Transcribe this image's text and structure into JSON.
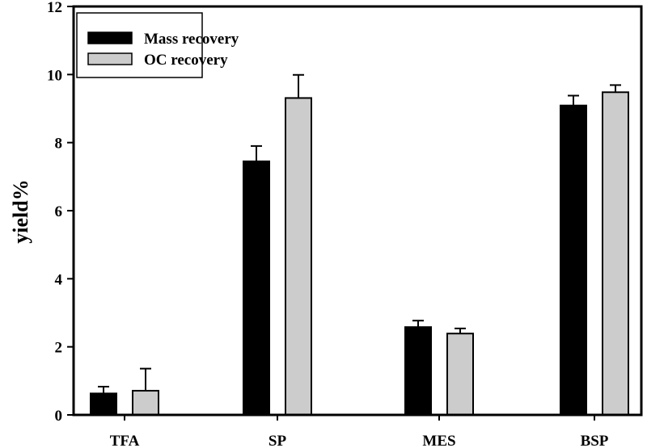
{
  "chart_data": {
    "type": "bar",
    "title": "",
    "xlabel": "",
    "ylabel": "yield%",
    "ylim": [
      0,
      12
    ],
    "yticks": [
      0,
      2,
      4,
      6,
      8,
      10,
      12
    ],
    "grid": false,
    "legend_position": "top-left",
    "categories": [
      "TFA",
      "SP",
      "MES",
      "BSP"
    ],
    "series": [
      {
        "name": "Mass recovery",
        "color": "#000000",
        "values": [
          0.63,
          7.45,
          2.58,
          9.09
        ],
        "error": [
          0.2,
          0.45,
          0.19,
          0.29
        ]
      },
      {
        "name": "OC recovery",
        "color": "#cccccc",
        "values": [
          0.71,
          9.31,
          2.39,
          9.48
        ],
        "error": [
          0.65,
          0.68,
          0.15,
          0.21
        ]
      }
    ]
  }
}
